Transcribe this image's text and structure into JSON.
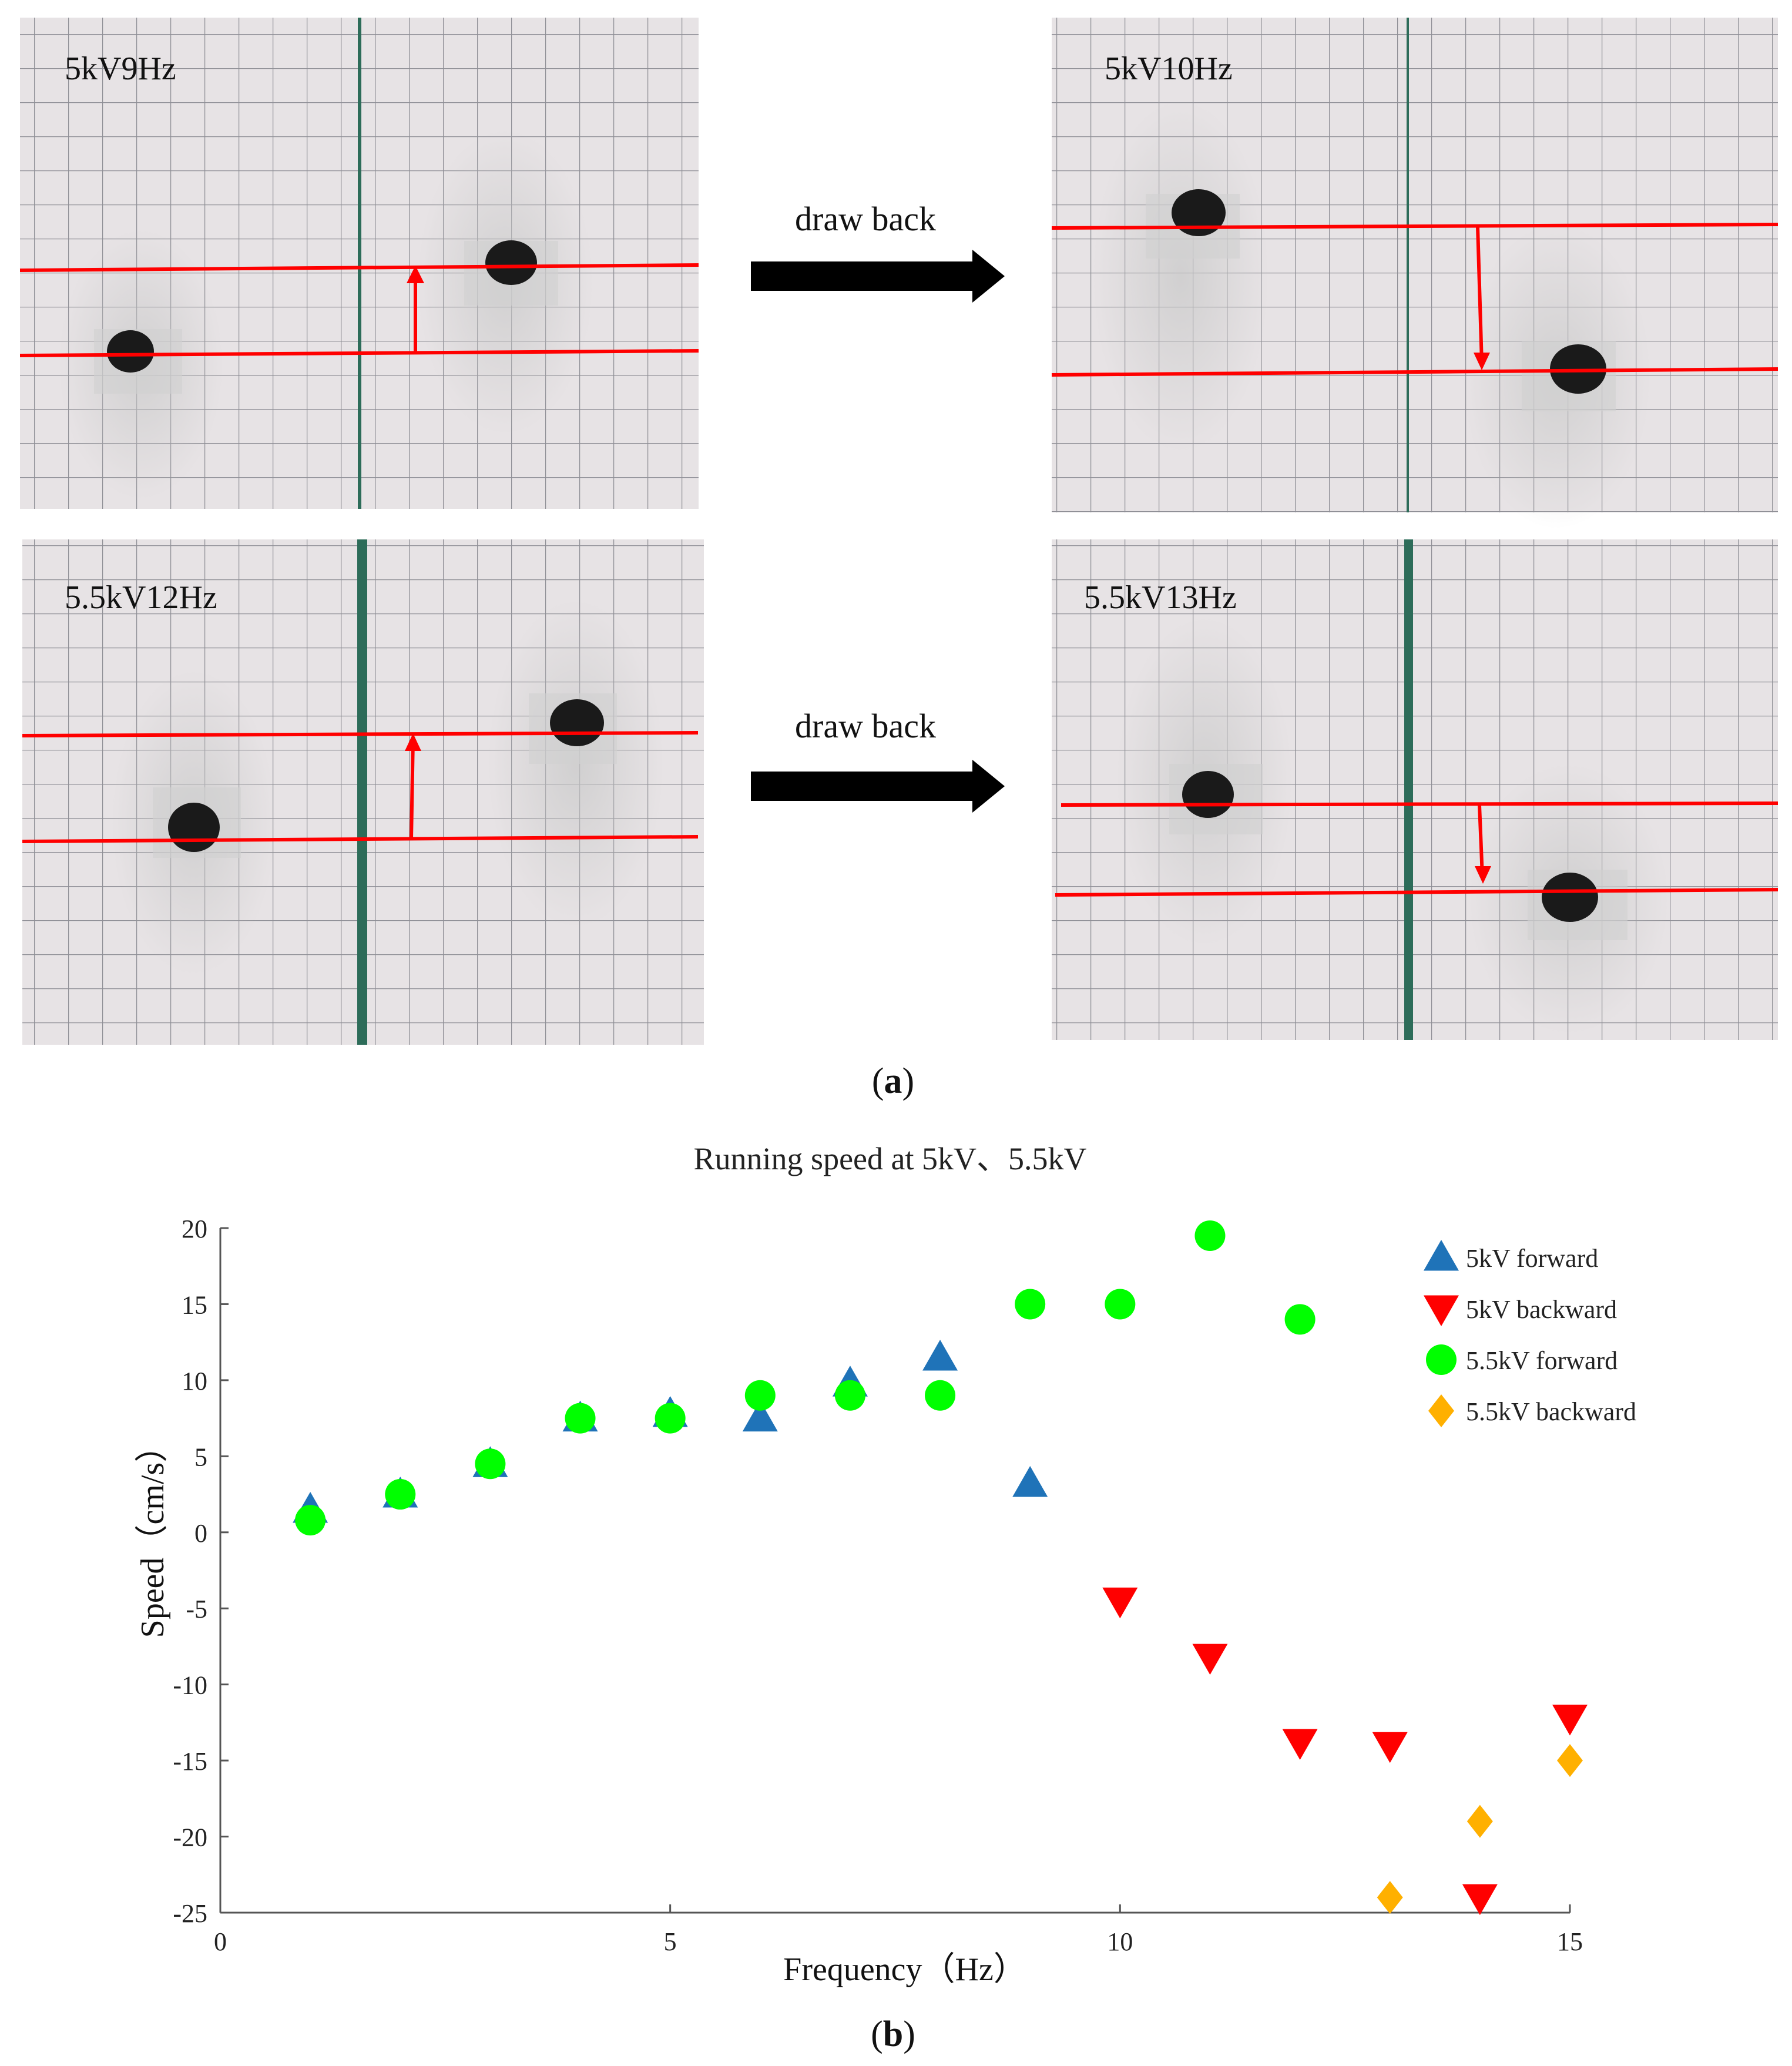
{
  "panel_a": {
    "caption": "a",
    "photos": [
      {
        "label": "5kV9Hz"
      },
      {
        "label": "5kV10Hz"
      },
      {
        "label": "5.5kV12Hz"
      },
      {
        "label": "5.5kV13Hz"
      }
    ],
    "arrow_text_top": "draw back",
    "arrow_text_bottom": "draw back"
  },
  "panel_b": {
    "caption": "b"
  },
  "colors": {
    "blue": "#1f73b8",
    "red": "#ff0000",
    "green": "#00ff00",
    "orange": "#ffb000",
    "grid_line": "#9a9a9a",
    "paper": "#e6e2e4",
    "green_edge": "#2f6f5c",
    "robot": "#1a1a1a"
  },
  "chart_data": {
    "type": "scatter",
    "title": "Running speed at 5kV、5.5kV",
    "xlabel": "Frequency（Hz）",
    "ylabel": "Speed（cm/s）",
    "xlim": [
      0,
      15
    ],
    "ylim": [
      -25,
      20
    ],
    "xticks": [
      0,
      5,
      10,
      15
    ],
    "yticks": [
      20,
      15,
      10,
      5,
      0,
      -5,
      -10,
      -15,
      -20,
      -25
    ],
    "legend_position": "top-right",
    "series": [
      {
        "name": "5kV forward",
        "marker": "triangle-up",
        "color": "#1f73b8",
        "x": [
          1,
          2,
          3,
          4,
          5,
          6,
          7,
          8,
          9
        ],
        "y": [
          1.5,
          2.5,
          4.5,
          7.5,
          7.8,
          7.5,
          9.8,
          11.5,
          3.2
        ]
      },
      {
        "name": "5kV backward",
        "marker": "triangle-down",
        "color": "#ff0000",
        "x": [
          10,
          11,
          12,
          13,
          14,
          15
        ],
        "y": [
          -4.5,
          -8.2,
          -13.8,
          -14.0,
          -24.0,
          -12.2
        ]
      },
      {
        "name": "5.5kV forward",
        "marker": "circle",
        "color": "#00ff00",
        "x": [
          1,
          2,
          3,
          4,
          5,
          6,
          7,
          8,
          9,
          10,
          11,
          12
        ],
        "y": [
          0.8,
          2.5,
          4.5,
          7.5,
          7.5,
          9,
          9,
          9,
          15,
          15,
          19.5,
          14
        ]
      },
      {
        "name": "5.5kV backward",
        "marker": "diamond",
        "color": "#ffb000",
        "x": [
          13,
          14,
          15
        ],
        "y": [
          -24.0,
          -19.0,
          -15.0
        ]
      }
    ]
  }
}
